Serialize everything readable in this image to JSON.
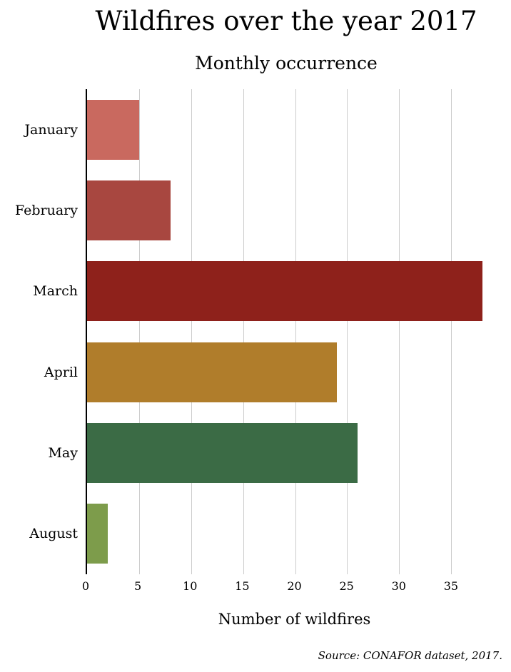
{
  "title": "Wildfires over the year 2017",
  "subtitle": "Monthly occurrence",
  "source_note": "Source: CONAFOR dataset, 2017.",
  "chart_data": {
    "type": "bar",
    "orientation": "horizontal",
    "title": "Wildfires over the year 2017",
    "subtitle": "Monthly occurrence",
    "categories": [
      "January",
      "February",
      "March",
      "April",
      "May",
      "August"
    ],
    "values": [
      5,
      8,
      38,
      24,
      26,
      2
    ],
    "colors": [
      "#c9695f",
      "#a84740",
      "#8e211b",
      "#b07d2b",
      "#3b6b45",
      "#7d9c4b"
    ],
    "xlabel": "Number of wildfires",
    "ylabel": "",
    "xlim": [
      0,
      40
    ],
    "xticks": [
      0,
      5,
      10,
      15,
      20,
      25,
      30,
      35
    ],
    "grid": true,
    "legend": "none",
    "source_note": "Source: CONAFOR dataset, 2017."
  }
}
